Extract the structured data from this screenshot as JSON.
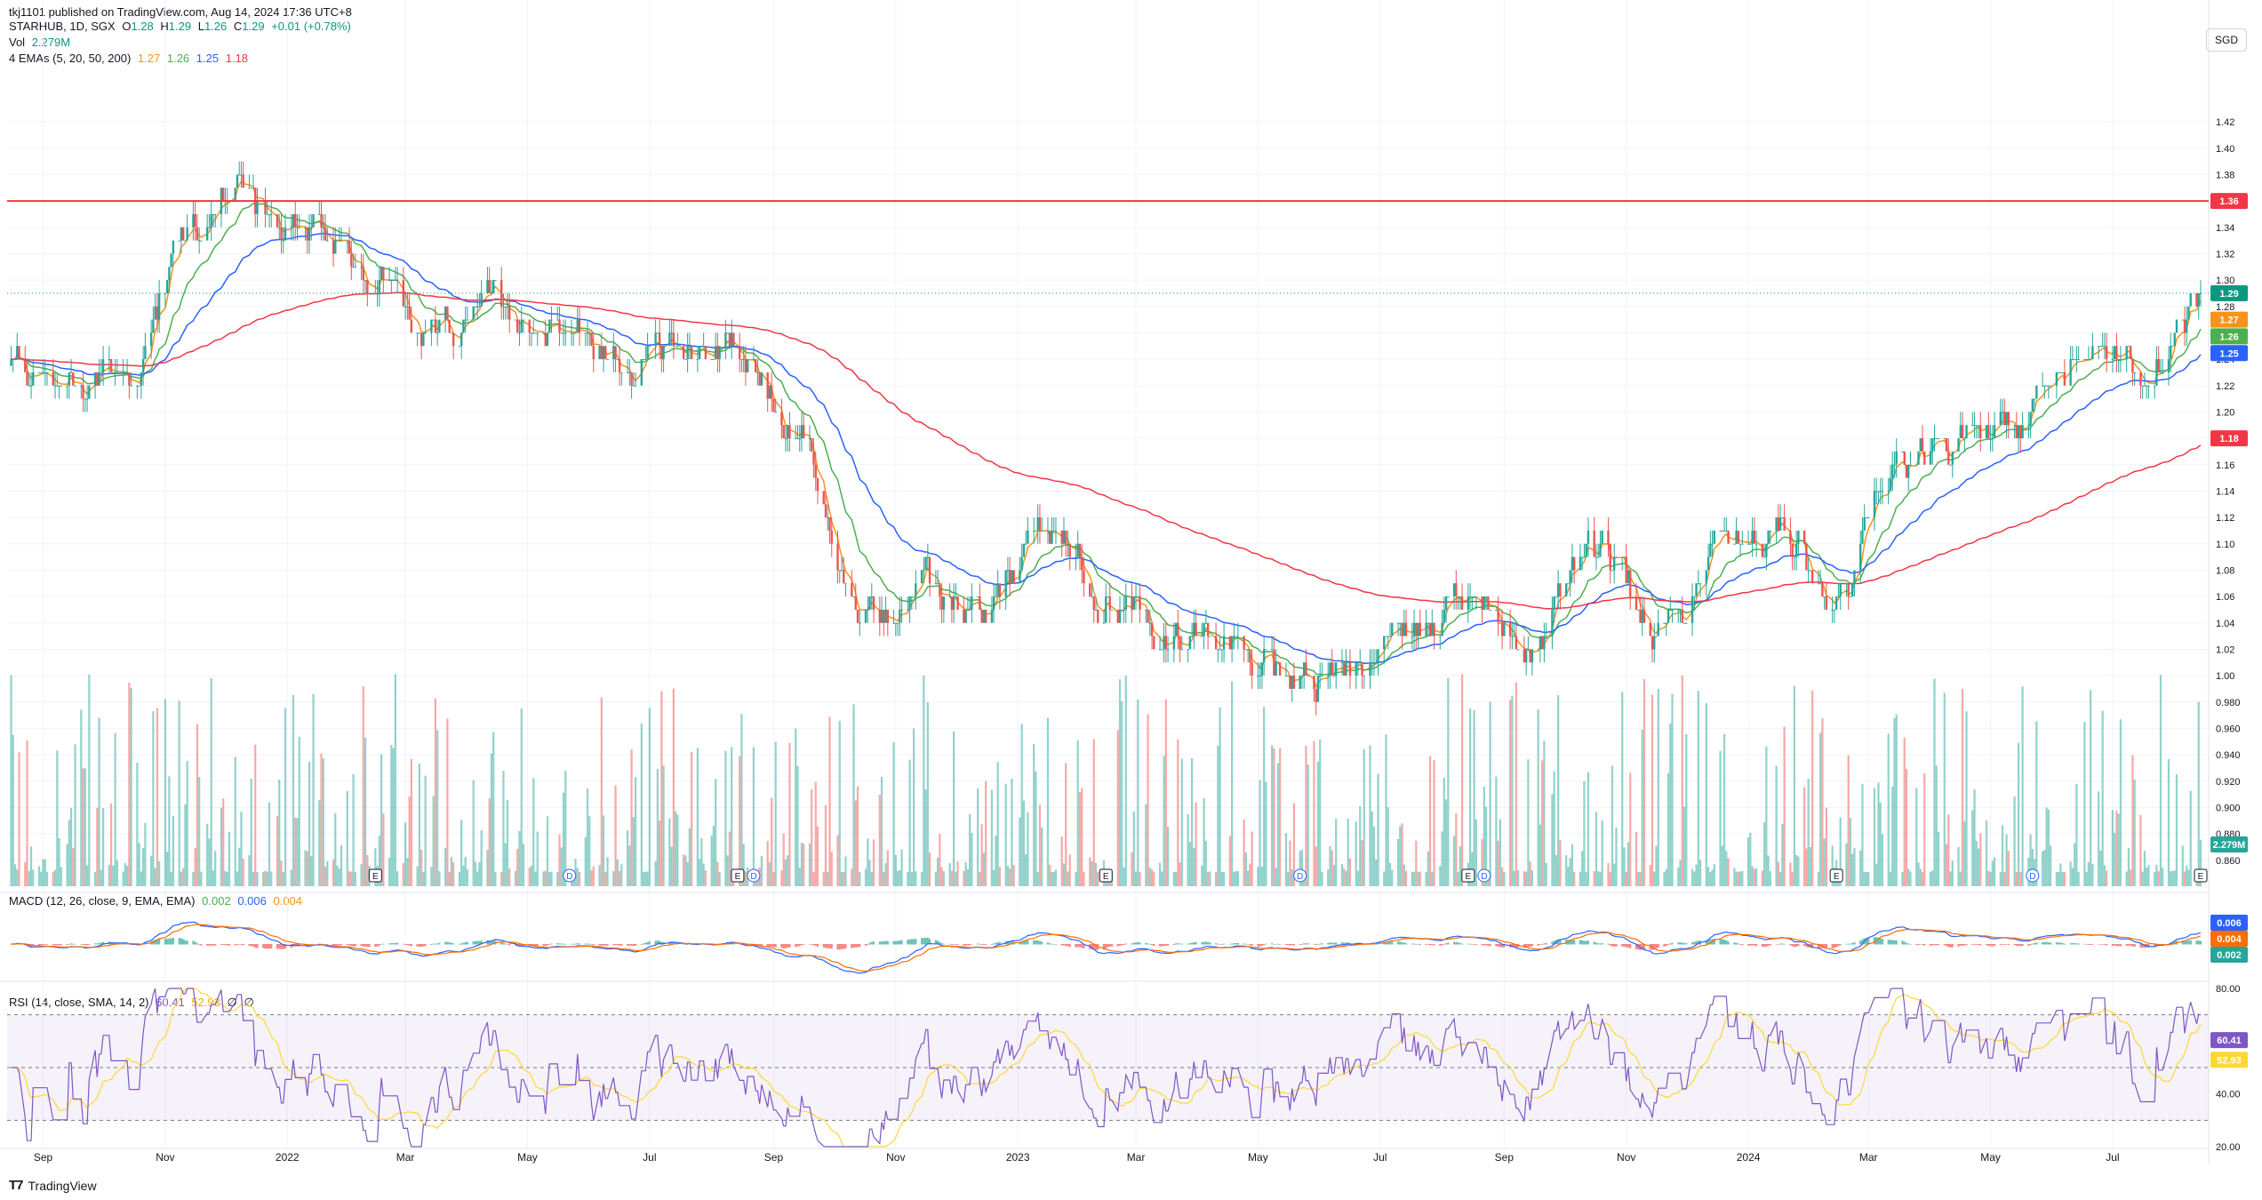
{
  "publish_line": "tkj1101 published on TradingView.com, Aug 14, 2024 17:36 UTC+8",
  "legend": {
    "symbol_line": {
      "symbol": "STARHUB, 1D, SGX",
      "o_label": "O",
      "o": "1.28",
      "h_label": "H",
      "h": "1.29",
      "l_label": "L",
      "l": "1.26",
      "c_label": "C",
      "c": "1.29",
      "change": "+0.01 (+0.78%)"
    },
    "vol_line": {
      "label": "Vol",
      "value": "2.279M"
    },
    "ema_line": {
      "label": "4 EMAs (5, 20, 50, 200)",
      "v1": "1.27",
      "v2": "1.26",
      "v3": "1.25",
      "v4": "1.18"
    },
    "macd_line": {
      "label": "MACD (12, 26, close, 9, EMA, EMA)",
      "v1": "0.002",
      "v2": "0.006",
      "v3": "0.004"
    },
    "rsi_line": {
      "label": "RSI (14, close, SMA, 14, 2)",
      "v1": "60.41",
      "v2": "52.93",
      "v3": "∅",
      "v4": "∅"
    }
  },
  "currency_button": "SGD",
  "footer": {
    "logo_icon": "tradingview-logo-icon",
    "brand": "TradingView"
  },
  "colors": {
    "up": "#26a69a",
    "down": "#ef5350",
    "ema5": "#f7931a",
    "ema20": "#4caf50",
    "ema50": "#2962ff",
    "ema200": "#f23645",
    "hline": "#f23645",
    "rsi": "#7e57c2",
    "rsi_ma": "#fdd835",
    "macd": "#2962ff",
    "signal": "#ff6d00",
    "last": "#089981"
  },
  "chart_data": [
    {
      "type": "candlestick",
      "title": "STARHUB, 1D, SGX",
      "x_ticks": [
        "Sep",
        "Nov",
        "2022",
        "Mar",
        "May",
        "Jul",
        "Sep",
        "Nov",
        "2023",
        "Mar",
        "May",
        "Jul",
        "Sep",
        "Nov",
        "2024",
        "Mar",
        "May",
        "Jul"
      ],
      "y_ticks": [
        "1.42",
        "1.40",
        "1.38",
        "1.36",
        "1.34",
        "1.32",
        "1.30",
        "1.28",
        "1.26",
        "1.24",
        "1.22",
        "1.20",
        "1.18",
        "1.16",
        "1.14",
        "1.12",
        "1.10",
        "1.08",
        "1.06",
        "1.04",
        "1.02",
        "1.00",
        "0.980",
        "0.960",
        "0.940",
        "0.920",
        "0.900",
        "0.880",
        "0.860"
      ],
      "ylim": [
        0.845,
        1.445
      ],
      "horizontal_line": {
        "value": 1.36,
        "label": "1.36"
      },
      "last_close": {
        "value": 1.29,
        "label": "1.29"
      },
      "price_labels": [
        {
          "value": 1.27,
          "label": "1.27",
          "series": "EMA 5"
        },
        {
          "value": 1.26,
          "label": "1.26",
          "series": "EMA 20"
        },
        {
          "value": 1.25,
          "label": "1.25",
          "series": "EMA 50"
        },
        {
          "value": 1.18,
          "label": "1.18",
          "series": "EMA 200"
        },
        {
          "value": 0.872,
          "label": "2.279M",
          "series": "Vol"
        }
      ],
      "close_path_monthly": [
        [
          "2021-08",
          1.235
        ],
        [
          "2021-09",
          1.22
        ],
        [
          "2021-10",
          1.24
        ],
        [
          "2021-11",
          1.34
        ],
        [
          "2021-12",
          1.36
        ],
        [
          "2022-01",
          1.33
        ],
        [
          "2022-02",
          1.3
        ],
        [
          "2022-03",
          1.25
        ],
        [
          "2022-04",
          1.28
        ],
        [
          "2022-05",
          1.27
        ],
        [
          "2022-06",
          1.24
        ],
        [
          "2022-07",
          1.25
        ],
        [
          "2022-08",
          1.25
        ],
        [
          "2022-09",
          1.17
        ],
        [
          "2022-10",
          1.04
        ],
        [
          "2022-11",
          1.06
        ],
        [
          "2022-12",
          1.04
        ],
        [
          "2023-01",
          1.11
        ],
        [
          "2023-02",
          1.06
        ],
        [
          "2023-03",
          1.03
        ],
        [
          "2023-04",
          1.02
        ],
        [
          "2023-05",
          1.005
        ],
        [
          "2023-06",
          1.005
        ],
        [
          "2023-07",
          1.03
        ],
        [
          "2023-08",
          1.06
        ],
        [
          "2023-09",
          1.03
        ],
        [
          "2023-10",
          1.09
        ],
        [
          "2023-11",
          1.04
        ],
        [
          "2023-12",
          1.09
        ],
        [
          "2024-01",
          1.1
        ],
        [
          "2024-02",
          1.06
        ],
        [
          "2024-03",
          1.155
        ],
        [
          "2024-04",
          1.18
        ],
        [
          "2024-05",
          1.2
        ],
        [
          "2024-06",
          1.25
        ],
        [
          "2024-07",
          1.23
        ],
        [
          "2024-08",
          1.29
        ]
      ],
      "event_markers": [
        {
          "date": "2022-02",
          "label": "E"
        },
        {
          "date": "2022-05",
          "label": "D"
        },
        {
          "date": "2022-08",
          "label": "E"
        },
        {
          "date": "2022-08",
          "label": "D"
        },
        {
          "date": "2023-02",
          "label": "E"
        },
        {
          "date": "2023-05",
          "label": "D"
        },
        {
          "date": "2023-08",
          "label": "E"
        },
        {
          "date": "2023-08",
          "label": "D"
        },
        {
          "date": "2024-02",
          "label": "E"
        },
        {
          "date": "2024-05",
          "label": "D"
        },
        {
          "date": "2024-08",
          "label": "E"
        }
      ]
    },
    {
      "type": "bar",
      "title": "MACD (12, 26, close, 9, EMA, EMA)",
      "price_labels": [
        {
          "value": 0.006,
          "label": "0.006",
          "series": "MACD"
        },
        {
          "value": 0.004,
          "label": "0.004",
          "series": "Signal"
        },
        {
          "value": 0.002,
          "label": "0.002",
          "series": "Histogram"
        }
      ]
    },
    {
      "type": "line",
      "title": "RSI (14, close, SMA, 14, 2)",
      "y_ticks": [
        "80.00",
        "40.00",
        "20.00"
      ],
      "ylim": [
        20,
        80
      ],
      "bands": {
        "upper": 70,
        "middle": 50,
        "lower": 30
      },
      "price_labels": [
        {
          "value": 60.41,
          "label": "60.41",
          "series": "RSI"
        },
        {
          "value": 52.93,
          "label": "52.93",
          "series": "RSI-based MA"
        }
      ]
    }
  ]
}
